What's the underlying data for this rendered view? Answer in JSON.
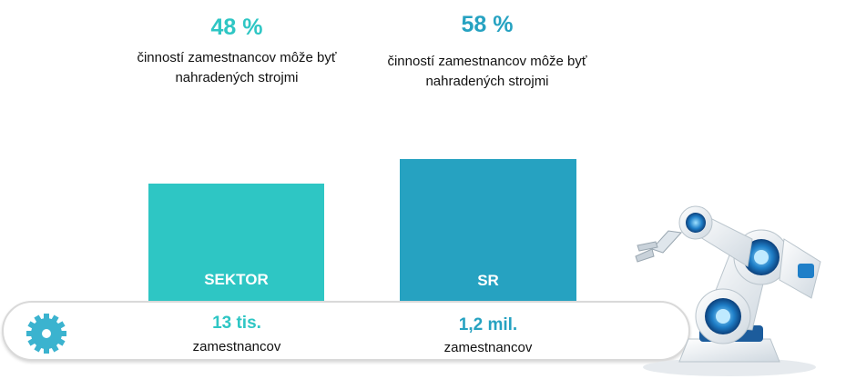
{
  "chart_data": {
    "type": "bar",
    "categories": [
      "SEKTOR",
      "SR"
    ],
    "values": [
      48,
      58
    ],
    "value_labels": [
      "48 %",
      "58 %"
    ],
    "descriptions": [
      "činností zamestnancov môže byť nahradených strojmi",
      "činností zamestnancov môže byť nahradených strojmi"
    ],
    "counts": [
      "13 tis.",
      "1,2 mil."
    ],
    "count_units": [
      "zamestnancov",
      "zamestnancov"
    ],
    "colors": [
      "#2ec6c4",
      "#26a2c1"
    ],
    "ylim": [
      0,
      100
    ]
  },
  "labels": {
    "pct_1": "48 %",
    "pct_2": "58 %",
    "desc_1_line1": "činností zamestnancov môže byť",
    "desc_1_line2": "nahradených strojmi",
    "desc_2_line1": "činností zamestnancov môže byť",
    "desc_2_line2": "nahradených strojmi",
    "bar_1": "SEKTOR",
    "bar_2": "SR",
    "count_1": "13 tis.",
    "unit_1": "zamestnancov",
    "count_2": "1,2 mil.",
    "unit_2": "zamestnancov"
  },
  "colors": {
    "teal": "#2ec6c4",
    "blue": "#26a2c1",
    "gear": "#3bb3cf",
    "belt_border": "#d9d9d9"
  },
  "icons": [
    "gear-icon",
    "robot-arm-icon"
  ]
}
